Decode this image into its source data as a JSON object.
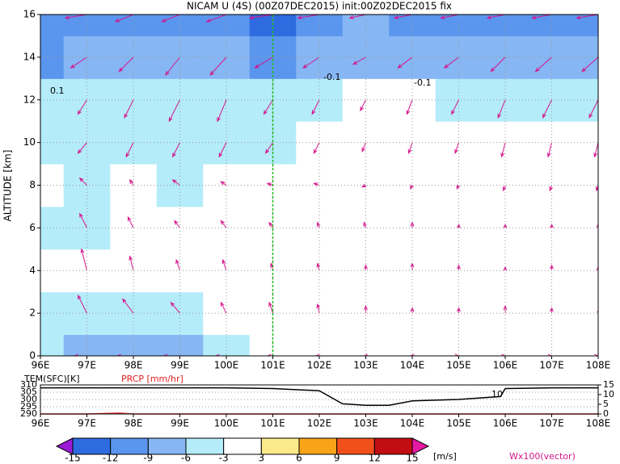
{
  "chart_data": [
    {
      "type": "contourf",
      "title": "NICAM U (4S) (00Z07DEC2015) init:00Z02DEC2015 fix",
      "ylabel": "ALTITUDE [km]",
      "xlim": [
        96,
        108
      ],
      "ylim": [
        0,
        16
      ],
      "xticks": [
        {
          "value": 96,
          "label": "96E"
        },
        {
          "value": 97,
          "label": "97E"
        },
        {
          "value": 98,
          "label": "98E"
        },
        {
          "value": 99,
          "label": "99E"
        },
        {
          "value": 100,
          "label": "100E"
        },
        {
          "value": 101,
          "label": "101E"
        },
        {
          "value": 102,
          "label": "102E"
        },
        {
          "value": 103,
          "label": "103E"
        },
        {
          "value": 104,
          "label": "104E"
        },
        {
          "value": 105,
          "label": "105E"
        },
        {
          "value": 106,
          "label": "106E"
        },
        {
          "value": 107,
          "label": "107E"
        },
        {
          "value": 108,
          "label": "108E"
        }
      ],
      "yticks": [
        0,
        2,
        4,
        6,
        8,
        10,
        12,
        14,
        16
      ],
      "grid": true,
      "x": [
        96,
        97,
        98,
        99,
        100,
        101,
        102,
        103,
        104,
        105,
        106,
        107,
        108
      ],
      "y": [
        0,
        2,
        4,
        6,
        8,
        10,
        12,
        14,
        16
      ],
      "u": [
        [
          -5,
          -7,
          -9,
          -9,
          -6,
          -3,
          -2,
          -1,
          -1,
          0,
          0,
          0,
          0
        ],
        [
          -4,
          -5,
          -6,
          -5,
          -3,
          -2,
          -1,
          0,
          0,
          0,
          0,
          0,
          1
        ],
        [
          -3,
          -3,
          -2,
          -2,
          -2,
          -1,
          -1,
          0,
          0,
          0,
          0,
          0,
          0
        ],
        [
          -4,
          -4,
          -3,
          -3,
          -3,
          -2,
          -1,
          -1,
          0,
          0,
          0,
          0,
          0
        ],
        [
          -3,
          -4,
          -2,
          -4,
          -3,
          -3,
          -3,
          -2,
          -1,
          -1,
          -1,
          -1,
          -1
        ],
        [
          -4,
          -5,
          -4,
          -4,
          -4,
          -4,
          -3,
          -2,
          -2,
          -2,
          -2,
          -2,
          -2
        ],
        [
          -6,
          -5,
          -5,
          -6,
          -5,
          -5,
          -4,
          -3,
          -3,
          -4,
          -4,
          -5,
          -5
        ],
        [
          -10,
          -9,
          -8,
          -8,
          -9,
          -10,
          -9,
          -7,
          -8,
          -8,
          -8,
          -9,
          -9
        ],
        [
          -12,
          -12,
          -10,
          -10,
          -11,
          -13,
          -12,
          -9,
          -10,
          -10,
          -10,
          -11,
          -12
        ]
      ],
      "w": [
        [
          0,
          0,
          0,
          0,
          0,
          0,
          0,
          0,
          0,
          0,
          0,
          0,
          0
        ],
        [
          12,
          10,
          8,
          6,
          6,
          6,
          5,
          4,
          3,
          3,
          4,
          3,
          2
        ],
        [
          14,
          12,
          8,
          6,
          6,
          4,
          4,
          3,
          4,
          3,
          2,
          3,
          2
        ],
        [
          10,
          8,
          6,
          4,
          4,
          3,
          3,
          3,
          3,
          2,
          2,
          2,
          2
        ],
        [
          6,
          4,
          3,
          3,
          2,
          1,
          1,
          -1,
          -2,
          -2,
          -3,
          -3,
          -3
        ],
        [
          -4,
          -6,
          -8,
          -8,
          -8,
          -6,
          -6,
          -5,
          -6,
          -6,
          -8,
          -8,
          -8
        ],
        [
          -6,
          -8,
          -10,
          -12,
          -12,
          -8,
          -8,
          -6,
          -8,
          -8,
          -10,
          -10,
          -10
        ],
        [
          -4,
          -6,
          -8,
          -10,
          -10,
          -6,
          -6,
          -4,
          -6,
          -6,
          -8,
          -8,
          -8
        ],
        [
          -2,
          -2,
          -4,
          -4,
          -4,
          -2,
          -2,
          -2,
          -2,
          -2,
          -2,
          -2,
          -2
        ]
      ],
      "levels": [
        -15,
        -12,
        -9,
        -6,
        -3,
        3,
        6,
        9,
        12,
        15
      ],
      "colors": [
        "#9a1ad6",
        "#2e6be0",
        "#5a96ee",
        "#86b6f3",
        "#b4ecfa",
        "#ffffff",
        "#fbe98a",
        "#f8a418",
        "#f2501a",
        "#c20d12",
        "#e619a3"
      ],
      "unit": "[m/s]",
      "vector_label": "Wx100(vector)",
      "vector_color": "#d6148c",
      "marker_x": 101,
      "marker_color": "#22bb22",
      "annotations": [
        "0.1",
        "-0.1",
        "-0.1"
      ]
    },
    {
      "type": "line",
      "xlim": [
        96,
        108
      ],
      "ylim": [
        290,
        310
      ],
      "yticks": [
        290,
        295,
        300,
        305,
        310
      ],
      "y2lim": [
        0,
        15
      ],
      "y2ticks": [
        0,
        5,
        10,
        15
      ],
      "xticks": [
        {
          "value": 96,
          "label": "96E"
        },
        {
          "value": 97,
          "label": "97E"
        },
        {
          "value": 98,
          "label": "98E"
        },
        {
          "value": 99,
          "label": "99E"
        },
        {
          "value": 100,
          "label": "100E"
        },
        {
          "value": 101,
          "label": "101E"
        },
        {
          "value": 102,
          "label": "102E"
        },
        {
          "value": 103,
          "label": "103E"
        },
        {
          "value": 104,
          "label": "104E"
        },
        {
          "value": 105,
          "label": "105E"
        },
        {
          "value": 106,
          "label": "106E"
        },
        {
          "value": 107,
          "label": "107E"
        },
        {
          "value": 108,
          "label": "108E"
        }
      ],
      "x": [
        96,
        97,
        97.7,
        98,
        99,
        100,
        101,
        102,
        102.5,
        103,
        103.5,
        104,
        105,
        105.9,
        106,
        107,
        108
      ],
      "series": [
        {
          "name": "TEM(SFC)[K]",
          "color": "#000000",
          "values": [
            308,
            308,
            308,
            308,
            308,
            308,
            307.5,
            306,
            297,
            296,
            296,
            299,
            300,
            302,
            307.5,
            308,
            308
          ]
        },
        {
          "name": "PRCP [mm/hr]",
          "color": "#e02020",
          "axis": "y2",
          "values": [
            0,
            0,
            0.4,
            0,
            0,
            0,
            0,
            0,
            0,
            0,
            0,
            0,
            0,
            0,
            0,
            0,
            0
          ]
        }
      ],
      "annotations": [
        "10"
      ]
    }
  ]
}
